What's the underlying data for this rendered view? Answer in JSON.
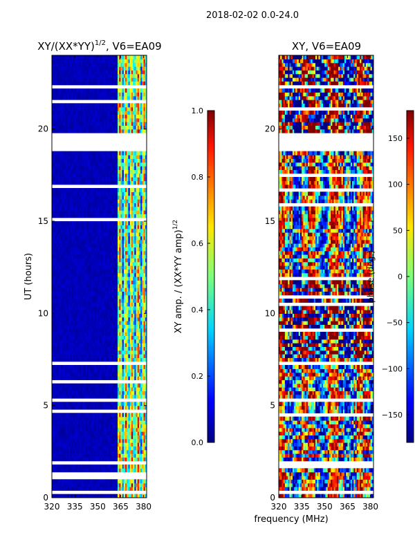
{
  "figure_title": "2018-02-02 0.0-24.0",
  "shared_xlabel": "frequency (MHz)",
  "chart_data": [
    {
      "type": "heatmap",
      "title_prefix": "XY/(XX*YY)",
      "title_exp": "1/2",
      "title_suffix": ", V6=EA09",
      "xlabel": "",
      "ylabel": "UT (hours)",
      "xlim": [
        320,
        382
      ],
      "ylim": [
        0,
        24
      ],
      "xticks": [
        320,
        335,
        350,
        365,
        380
      ],
      "yticks": [
        0,
        5,
        10,
        15,
        20
      ],
      "bright_band_mhz": [
        363,
        382
      ],
      "flagged_ut_bands": [
        [
          0.25,
          0.5
        ],
        [
          1.8,
          2.0
        ],
        [
          4.2,
          4.3
        ],
        [
          5.2,
          5.5
        ],
        [
          7.3,
          7.5
        ],
        [
          18.8,
          19.8
        ],
        [
          22.3,
          22.5
        ]
      ],
      "colorbar": {
        "label": "XY amp. / (XX*YY amp)",
        "label_exp": "1/2",
        "range": [
          0.0,
          1.0
        ],
        "ticks": [
          "0.0",
          "0.2",
          "0.4",
          "0.6",
          "0.8",
          "1.0"
        ],
        "colormap": "jet"
      }
    },
    {
      "type": "heatmap",
      "title": "XY, V6=EA09",
      "xlabel": "frequency (MHz)",
      "ylabel": "",
      "xlim": [
        320,
        382
      ],
      "ylim": [
        0,
        24
      ],
      "xticks": [
        320,
        335,
        350,
        365,
        380
      ],
      "yticks": [
        0,
        5,
        10,
        15,
        20
      ],
      "flagged_ut_bands": [
        [
          0.25,
          0.5
        ],
        [
          1.8,
          2.0
        ],
        [
          4.2,
          4.3
        ],
        [
          5.2,
          5.5
        ],
        [
          7.3,
          7.5
        ],
        [
          18.8,
          19.8
        ],
        [
          22.3,
          22.5
        ]
      ],
      "colorbar": {
        "label": "phase (deg.)",
        "range": [
          -180,
          180
        ],
        "ticks": [
          "−150",
          "−100",
          "−50",
          "0",
          "50",
          "100",
          "150"
        ],
        "tick_values": [
          -150,
          -100,
          -50,
          0,
          50,
          100,
          150
        ],
        "colormap": "jet"
      }
    }
  ]
}
